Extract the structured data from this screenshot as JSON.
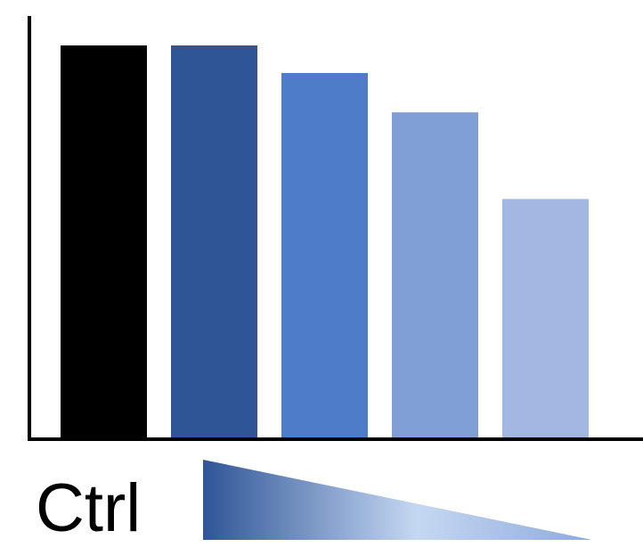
{
  "chart_data": {
    "type": "bar",
    "values": [
      100,
      100,
      93,
      83,
      61
    ],
    "ylim": [
      0,
      100
    ],
    "bar_colors": [
      "#000000",
      "#2f5597",
      "#4f7cc8",
      "#7f9fd6",
      "#a2b8e3"
    ],
    "axis_color": "#000000",
    "control_label": "Ctrl",
    "gradient_colors": [
      "#2f5597",
      "#c5d8f2",
      "#8eaadb"
    ],
    "grid": false
  }
}
